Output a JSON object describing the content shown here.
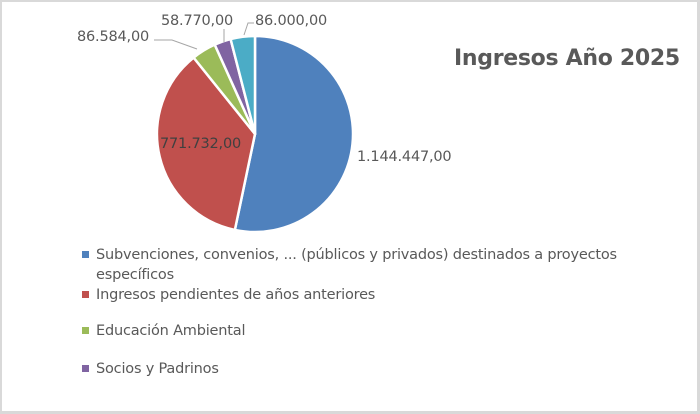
{
  "chart_data": {
    "type": "pie",
    "title": "Ingresos Año 2025",
    "categories": [
      "Subvenciones, convenios, ... (públicos y privados) destinados a proyectos específicos",
      "Ingresos pendientes de años anteriores",
      "Educación Ambiental",
      "Socios y Padrinos",
      ""
    ],
    "values": [
      1144447.0,
      771732.0,
      86584.0,
      58770.0,
      86000.0
    ],
    "data_labels": [
      "1.144.447,00",
      "771.732,00",
      "86.584,00",
      "58.770,00",
      "86.000,00"
    ],
    "colors": [
      "#4f81bd",
      "#c0504d",
      "#9bbb59",
      "#8064a2",
      "#4bacc6"
    ],
    "legend_position": "bottom",
    "start_angle_deg": 0,
    "direction": "clockwise"
  },
  "title": "Ingresos Año 2025",
  "labels": {
    "subvenciones": "1.144.447,00",
    "pendientes": "771.732,00",
    "educacion": "86.584,00",
    "socios": "58.770,00",
    "otros": "86.000,00"
  },
  "legend": {
    "items": [
      {
        "label": "Subvenciones, convenios, ... (públicos y privados) destinados a proyectos",
        "label2": "específicos",
        "color": "#4f81bd"
      },
      {
        "label": "Ingresos pendientes de años anteriores",
        "color": "#c0504d"
      },
      {
        "label": "Educación Ambiental",
        "color": "#9bbb59"
      },
      {
        "label": "Socios y Padrinos",
        "color": "#8064a2"
      }
    ]
  }
}
